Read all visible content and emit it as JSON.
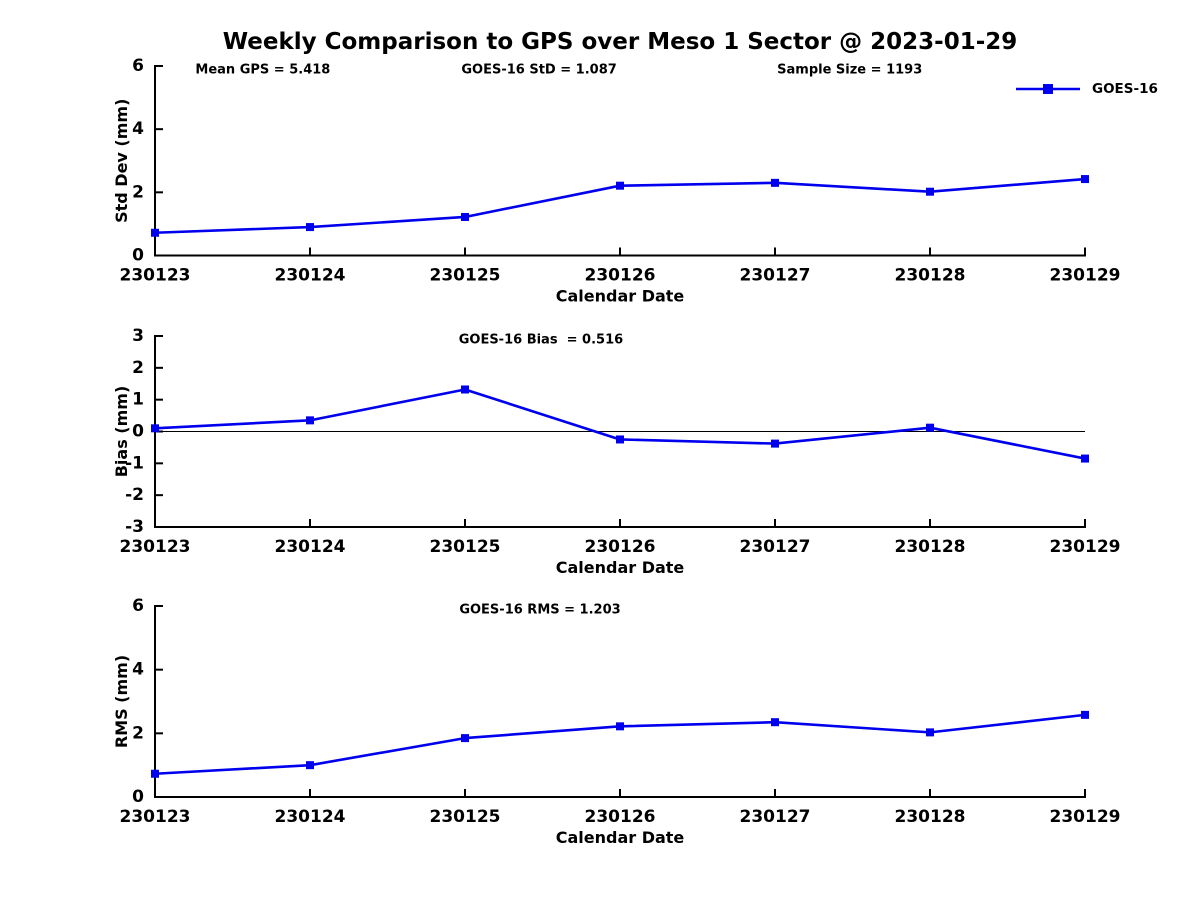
{
  "title": "Weekly Comparison to GPS over Meso 1 Sector @ 2023-01-29",
  "legend": {
    "label": "GOES-16"
  },
  "colors": {
    "line": "#0000EE",
    "axis": "#000000",
    "text": "#000000"
  },
  "chart_data": [
    {
      "id": "std-dev",
      "type": "line",
      "xlabel": "Calendar Date",
      "ylabel": "Std Dev (mm)",
      "ylim": [
        0,
        6
      ],
      "yticks": [
        0,
        2,
        4,
        6
      ],
      "categories": [
        "230123",
        "230124",
        "230125",
        "230126",
        "230127",
        "230128",
        "230129"
      ],
      "series": [
        {
          "name": "GOES-16",
          "values": [
            0.72,
            0.9,
            1.22,
            2.21,
            2.3,
            2.02,
            2.42
          ]
        }
      ],
      "annotations": [
        {
          "text": "Mean GPS = 5.418",
          "fx": 0.116
        },
        {
          "text": "GOES-16 StD = 1.087",
          "fx": 0.413
        },
        {
          "text": "Sample Size = 1193",
          "fx": 0.747
        }
      ],
      "zero_line": false,
      "grid": false,
      "legend_position": "top-right"
    },
    {
      "id": "bias",
      "type": "line",
      "xlabel": "Calendar Date",
      "ylabel": "Bias (mm)",
      "ylim": [
        -3,
        3
      ],
      "yticks": [
        -3,
        -2,
        -1,
        0,
        1,
        2,
        3
      ],
      "categories": [
        "230123",
        "230124",
        "230125",
        "230126",
        "230127",
        "230128",
        "230129"
      ],
      "series": [
        {
          "name": "GOES-16",
          "values": [
            0.1,
            0.35,
            1.32,
            -0.25,
            -0.38,
            0.12,
            -0.85
          ]
        }
      ],
      "annotations": [
        {
          "text": "GOES-16 Bias  = 0.516",
          "fx": 0.415
        }
      ],
      "zero_line": true,
      "grid": false
    },
    {
      "id": "rms",
      "type": "line",
      "xlabel": "Calendar Date",
      "ylabel": "RMS (mm)",
      "ylim": [
        0,
        6
      ],
      "yticks": [
        0,
        2,
        4,
        6
      ],
      "categories": [
        "230123",
        "230124",
        "230125",
        "230126",
        "230127",
        "230128",
        "230129"
      ],
      "series": [
        {
          "name": "GOES-16",
          "values": [
            0.73,
            1.0,
            1.85,
            2.22,
            2.35,
            2.03,
            2.58
          ]
        }
      ],
      "annotations": [
        {
          "text": "GOES-16 RMS = 1.203",
          "fx": 0.414
        }
      ],
      "zero_line": false,
      "grid": false
    }
  ]
}
